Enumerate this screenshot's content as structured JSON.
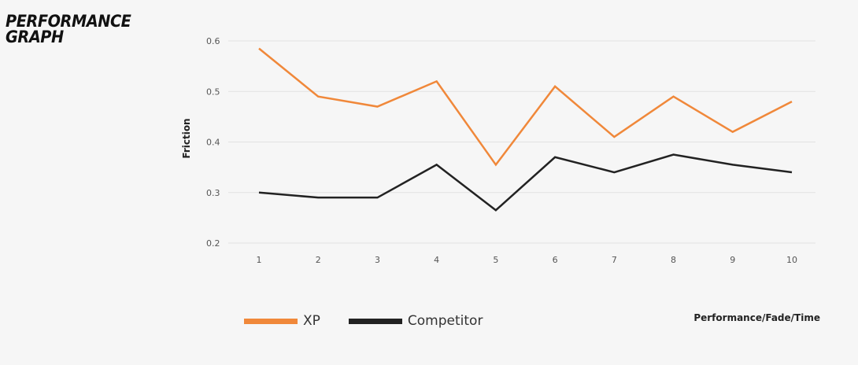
{
  "title": "PERFORMANCE\nGRAPH",
  "chart_data": {
    "type": "line",
    "title": "PERFORMANCE GRAPH",
    "xlabel": "Performance/Fade/Time",
    "ylabel": "Friction",
    "x": [
      1,
      2,
      3,
      4,
      5,
      6,
      7,
      8,
      9,
      10
    ],
    "x_tick_labels": [
      "1",
      "2",
      "3",
      "4",
      "5",
      "6",
      "7",
      "8",
      "9",
      "10"
    ],
    "y_tick_labels": [
      "0.2",
      "0.3",
      "0.4",
      "0.5",
      "0.6"
    ],
    "y_ticks": [
      0.2,
      0.3,
      0.4,
      0.5,
      0.6
    ],
    "ylim": [
      0.2,
      0.6
    ],
    "grid": "horizontal",
    "legend_position": "bottom-left",
    "series": [
      {
        "name": "XP",
        "color": "#f0883a",
        "values": [
          0.585,
          0.49,
          0.47,
          0.52,
          0.355,
          0.51,
          0.41,
          0.49,
          0.42,
          0.48
        ]
      },
      {
        "name": "Competitor",
        "color": "#222222",
        "values": [
          0.3,
          0.29,
          0.29,
          0.355,
          0.265,
          0.37,
          0.34,
          0.375,
          0.355,
          0.34
        ]
      }
    ]
  }
}
